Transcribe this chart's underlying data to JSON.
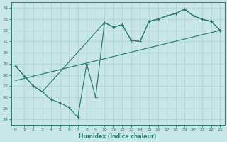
{
  "xlabel": "Humidex (Indice chaleur)",
  "xlim": [
    -0.5,
    23.5
  ],
  "ylim": [
    23.5,
    34.5
  ],
  "yticks": [
    24,
    25,
    26,
    27,
    28,
    29,
    30,
    31,
    32,
    33,
    34
  ],
  "xticks": [
    0,
    1,
    2,
    3,
    4,
    5,
    6,
    7,
    8,
    9,
    10,
    11,
    12,
    13,
    14,
    15,
    16,
    17,
    18,
    19,
    20,
    21,
    22,
    23
  ],
  "bg_color": "#c8e6e6",
  "grid_color": "#b0d4d4",
  "line_color": "#2a7a6f",
  "line1_x": [
    0,
    1,
    2,
    3,
    4,
    5,
    6,
    7,
    8,
    9,
    10,
    11,
    12,
    13,
    14,
    15,
    16,
    17,
    18,
    19,
    20,
    21,
    22,
    23
  ],
  "line1_y": [
    28.8,
    27.9,
    27.0,
    26.5,
    25.8,
    25.5,
    25.1,
    24.2,
    29.0,
    26.0,
    32.7,
    32.3,
    32.5,
    31.1,
    31.0,
    32.8,
    33.0,
    33.3,
    33.5,
    33.9,
    33.3,
    33.0,
    32.8,
    32.0
  ],
  "line2_x": [
    0,
    1,
    2,
    3,
    10,
    11,
    12,
    13,
    14,
    15,
    16,
    17,
    18,
    19,
    20,
    21,
    22,
    23
  ],
  "line2_y": [
    28.8,
    27.9,
    27.0,
    26.5,
    32.7,
    32.3,
    32.5,
    31.1,
    31.0,
    32.8,
    33.0,
    33.3,
    33.5,
    33.9,
    33.3,
    33.0,
    32.8,
    32.0
  ],
  "line3_x": [
    0,
    23
  ],
  "line3_y": [
    27.5,
    32.0
  ]
}
